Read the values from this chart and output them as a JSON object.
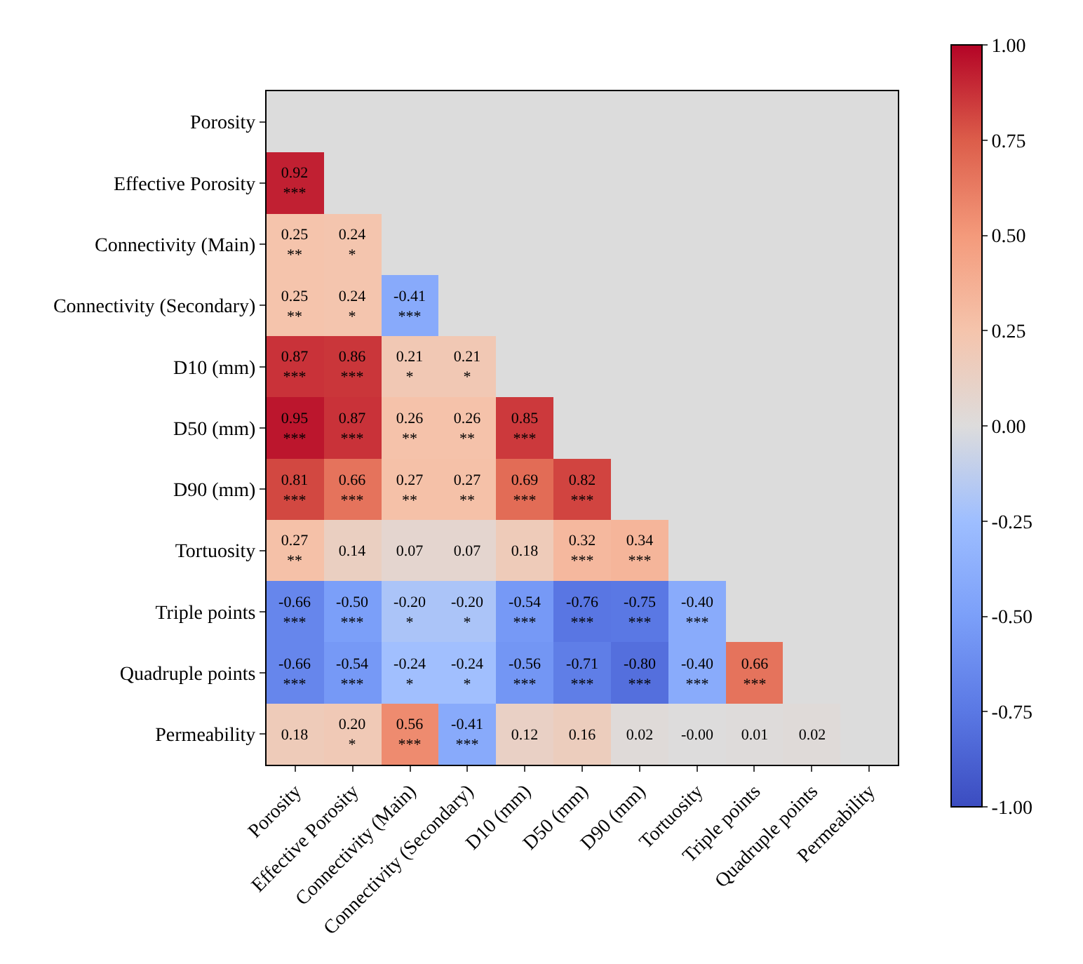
{
  "chart_data": {
    "type": "heatmap",
    "categories": [
      "Porosity",
      "Effective Porosity",
      "Connectivity (Main)",
      "Connectivity (Secondary)",
      "D10 (mm)",
      "D50 (mm)",
      "D90 (mm)",
      "Tortuosity",
      "Triple points",
      "Quadruple points",
      "Permeability"
    ],
    "y_categories": [
      "Porosity",
      "Effective Porosity",
      "Connectivity (Main)",
      "Connectivity (Secondary)",
      "D10 (mm)",
      "D50 (mm)",
      "D90 (mm)",
      "Tortuosity",
      "Triple points",
      "Quadruple points",
      "Permeability"
    ],
    "cells": [
      [
        null,
        null,
        null,
        null,
        null,
        null,
        null,
        null,
        null,
        null,
        null
      ],
      [
        0.92,
        null,
        null,
        null,
        null,
        null,
        null,
        null,
        null,
        null,
        null
      ],
      [
        0.25,
        0.24,
        null,
        null,
        null,
        null,
        null,
        null,
        null,
        null,
        null
      ],
      [
        0.25,
        0.24,
        -0.41,
        null,
        null,
        null,
        null,
        null,
        null,
        null,
        null
      ],
      [
        0.87,
        0.86,
        0.21,
        0.21,
        null,
        null,
        null,
        null,
        null,
        null,
        null
      ],
      [
        0.95,
        0.87,
        0.26,
        0.26,
        0.85,
        null,
        null,
        null,
        null,
        null,
        null
      ],
      [
        0.81,
        0.66,
        0.27,
        0.27,
        0.69,
        0.82,
        null,
        null,
        null,
        null,
        null
      ],
      [
        0.27,
        0.14,
        0.07,
        0.07,
        0.18,
        0.32,
        0.34,
        null,
        null,
        null,
        null
      ],
      [
        -0.66,
        -0.5,
        -0.2,
        -0.2,
        -0.54,
        -0.76,
        -0.75,
        -0.4,
        null,
        null,
        null
      ],
      [
        -0.66,
        -0.54,
        -0.24,
        -0.24,
        -0.56,
        -0.71,
        -0.8,
        -0.4,
        0.66,
        null,
        null
      ],
      [
        0.18,
        0.2,
        0.56,
        -0.41,
        0.12,
        0.16,
        0.02,
        0.0,
        0.01,
        0.02,
        null
      ]
    ],
    "cell_labels": [
      [
        null,
        null,
        null,
        null,
        null,
        null,
        null,
        null,
        null,
        null,
        null
      ],
      [
        "0.92\n***",
        null,
        null,
        null,
        null,
        null,
        null,
        null,
        null,
        null,
        null
      ],
      [
        "0.25\n**",
        "0.24\n*",
        null,
        null,
        null,
        null,
        null,
        null,
        null,
        null,
        null
      ],
      [
        "0.25\n**",
        "0.24\n*",
        "-0.41\n***",
        null,
        null,
        null,
        null,
        null,
        null,
        null,
        null
      ],
      [
        "0.87\n***",
        "0.86\n***",
        "0.21\n*",
        "0.21\n*",
        null,
        null,
        null,
        null,
        null,
        null,
        null
      ],
      [
        "0.95\n***",
        "0.87\n***",
        "0.26\n**",
        "0.26\n**",
        "0.85\n***",
        null,
        null,
        null,
        null,
        null,
        null
      ],
      [
        "0.81\n***",
        "0.66\n***",
        "0.27\n**",
        "0.27\n**",
        "0.69\n***",
        "0.82\n***",
        null,
        null,
        null,
        null,
        null
      ],
      [
        "0.27\n**",
        "0.14",
        "0.07",
        "0.07",
        "0.18",
        "0.32\n***",
        "0.34\n***",
        null,
        null,
        null,
        null
      ],
      [
        "-0.66\n***",
        "-0.50\n***",
        "-0.20\n*",
        "-0.20\n*",
        "-0.54\n***",
        "-0.76\n***",
        "-0.75\n***",
        "-0.40\n***",
        null,
        null,
        null
      ],
      [
        "-0.66\n***",
        "-0.54\n***",
        "-0.24\n*",
        "-0.24\n*",
        "-0.56\n***",
        "-0.71\n***",
        "-0.80\n***",
        "-0.40\n***",
        "0.66\n***",
        null,
        null
      ],
      [
        "0.18",
        "0.20\n*",
        "0.56\n***",
        "-0.41\n***",
        "0.12",
        "0.16",
        "0.02",
        "-0.00",
        "0.01",
        "0.02",
        null
      ]
    ],
    "clim": [
      -1,
      1
    ],
    "cticks": [
      {
        "value": -1,
        "label": "-1.00"
      },
      {
        "value": -0.75,
        "label": "-0.75"
      },
      {
        "value": -0.5,
        "label": "-0.50"
      },
      {
        "value": -0.25,
        "label": "-0.25"
      },
      {
        "value": 0,
        "label": "0.00"
      },
      {
        "value": 0.25,
        "label": "0.25"
      },
      {
        "value": 0.5,
        "label": "0.50"
      },
      {
        "value": 0.75,
        "label": "0.75"
      },
      {
        "value": 1,
        "label": "1.00"
      }
    ]
  }
}
